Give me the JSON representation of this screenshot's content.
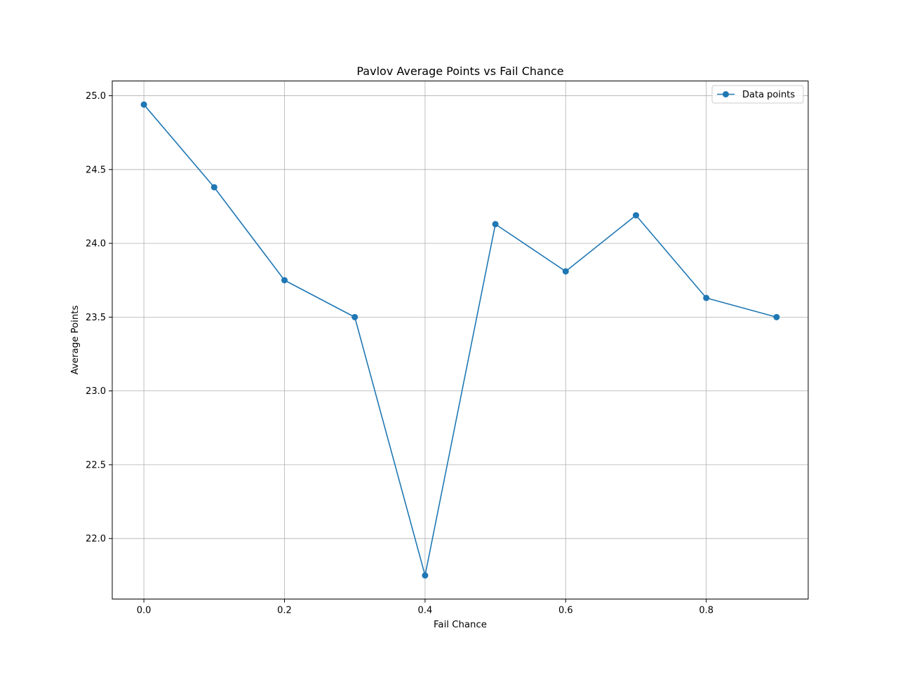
{
  "chart_data": {
    "type": "line",
    "title": "Pavlov Average Points vs Fail Chance",
    "xlabel": "Fail Chance",
    "ylabel": "Average Points",
    "x": [
      0.0,
      0.1,
      0.2,
      0.3,
      0.4,
      0.5,
      0.6,
      0.7,
      0.8,
      0.9
    ],
    "series": [
      {
        "name": "Data points",
        "values": [
          24.94,
          24.38,
          23.75,
          23.5,
          21.75,
          24.13,
          23.81,
          24.19,
          23.63,
          23.5
        ],
        "color": "#1f77b4",
        "marker": "circle"
      }
    ],
    "xlim": [
      -0.045,
      0.945
    ],
    "ylim": [
      21.59,
      25.1
    ],
    "xticks": [
      0.0,
      0.2,
      0.4,
      0.6,
      0.8
    ],
    "xtick_labels": [
      "0.0",
      "0.2",
      "0.4",
      "0.6",
      "0.8"
    ],
    "yticks": [
      22.0,
      22.5,
      23.0,
      23.5,
      24.0,
      24.5,
      25.0
    ],
    "ytick_labels": [
      "22.0",
      "22.5",
      "23.0",
      "23.5",
      "24.0",
      "24.5",
      "25.0"
    ],
    "grid": true,
    "grid_color": "#b0b0b0",
    "legend_position": "upper right"
  }
}
